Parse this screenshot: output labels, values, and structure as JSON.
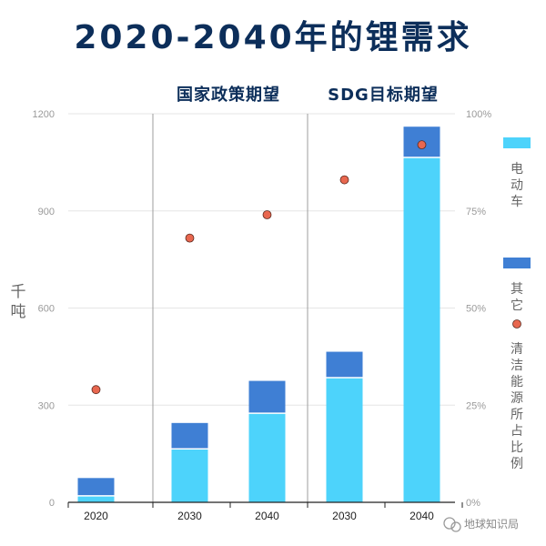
{
  "page": {
    "watermark": "地球知识局"
  },
  "chart_data": {
    "type": "bar",
    "title": "2020-2040年的锂需求",
    "ylabel": "千吨",
    "ylim": [
      0,
      1200
    ],
    "y_ticks": [
      0,
      300,
      600,
      900,
      1200
    ],
    "y2lim": [
      0,
      1
    ],
    "y2_ticks": [
      "0%",
      "25%",
      "50%",
      "75%",
      "100%"
    ],
    "groups": [
      {
        "label": "",
        "categories": [
          "2020"
        ]
      },
      {
        "label": "国家政策期望",
        "categories": [
          "2030",
          "2040"
        ]
      },
      {
        "label": "SDG目标期望",
        "categories": [
          "2030",
          "2040"
        ]
      }
    ],
    "categories": [
      "2020",
      "2030",
      "2040",
      "2030",
      "2040"
    ],
    "series": [
      {
        "name": "电动车",
        "stack": true,
        "color": "#4dd3fb",
        "values": [
          20,
          165,
          275,
          385,
          1065
        ]
      },
      {
        "name": "其它",
        "stack": true,
        "color": "#3f7fd4",
        "values": [
          55,
          80,
          100,
          80,
          95
        ]
      },
      {
        "name": "清洁能源所占比例",
        "axis": "right",
        "marker": "dot",
        "color": "#e8674f",
        "values": [
          0.29,
          0.68,
          0.74,
          0.83,
          0.92
        ]
      }
    ],
    "legend": "right"
  }
}
